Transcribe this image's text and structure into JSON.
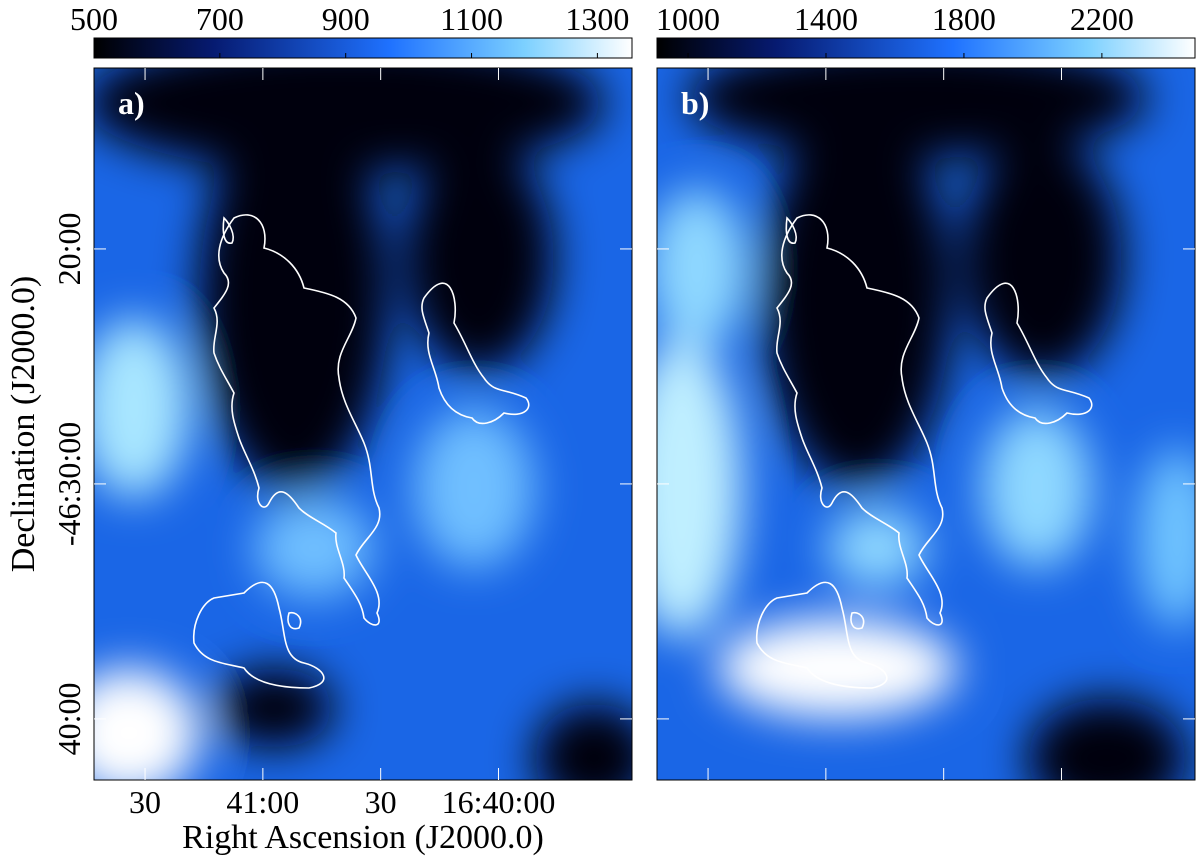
{
  "chart_data": [
    {
      "type": "heatmap",
      "panel_label": "a)",
      "clim": [
        500,
        1355
      ],
      "colorbar_ticks": [
        500,
        700,
        900,
        1100,
        1300
      ],
      "x_label": "Right Ascension (J2000.0)",
      "y_label": "Declination (J2000.0)",
      "xlim": [
        60103,
        59966
      ],
      "xticks": [
        {
          "value": 60090,
          "label": "30"
        },
        {
          "value": 60060,
          "label": "41:00"
        },
        {
          "value": 60030,
          "label": "30"
        },
        {
          "value": 60000,
          "label": "16:40:00"
        }
      ],
      "ylim": [
        -2802.6,
        -2772.3
      ],
      "yticks": [
        {
          "value": -2780,
          "label": "20:00"
        },
        {
          "value": -2790,
          "label": "-46:30:00"
        },
        {
          "value": -2800,
          "label": "40:00"
        }
      ]
    },
    {
      "type": "heatmap",
      "panel_label": "b)",
      "clim": [
        910,
        2470
      ],
      "colorbar_ticks": [
        1000,
        1400,
        1800,
        2200
      ]
    }
  ]
}
